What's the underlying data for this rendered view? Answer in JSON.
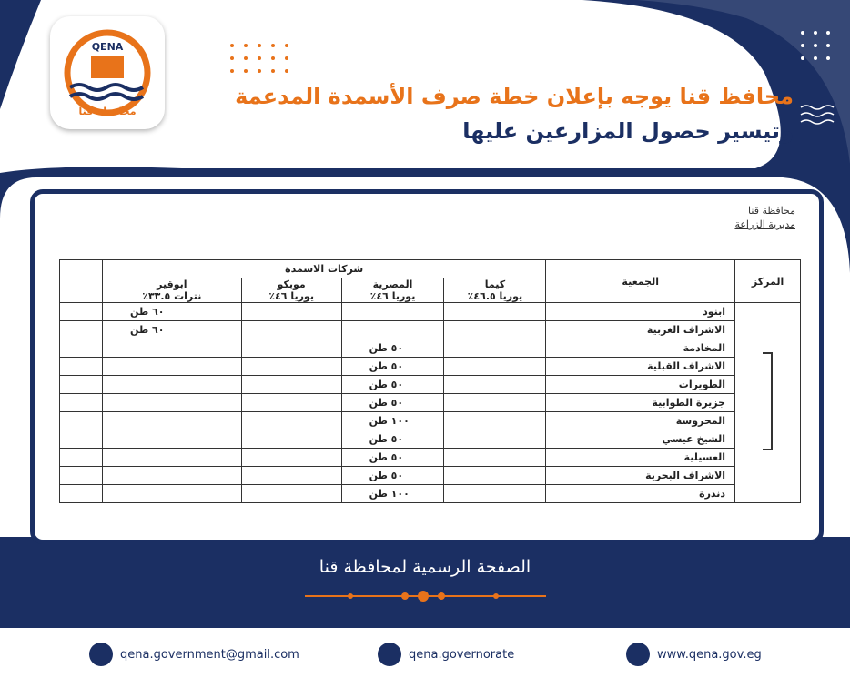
{
  "logo": {
    "abbr": "QENA",
    "name": "محافظة قنا"
  },
  "header": {
    "title_line1": "محافظ قنا يوجه بإعلان خطة صرف الأسمدة المدعمة",
    "title_line2": "وتيسير حصول المزارعين عليها"
  },
  "document": {
    "issuer": [
      "محافظة قنا",
      "مديرية الزراعة"
    ],
    "table": {
      "center": "المركز",
      "association": "الجمعية",
      "group": "شركات الاسمدة",
      "companies": [
        {
          "name": "كيما",
          "product": "يوريا ٤٦.٥٪"
        },
        {
          "name": "المصرية",
          "product": "يوريا ٤٦٪"
        },
        {
          "name": "موبكو",
          "product": "يوريا ٤٦٪"
        },
        {
          "name": "ابوقير",
          "product": "نترات ٣٣.٥٪"
        }
      ],
      "rows": [
        [
          "ابنود",
          null,
          null,
          null,
          "٦٠ طن"
        ],
        [
          "الاشراف الغربية",
          null,
          null,
          null,
          "٦٠ طن"
        ],
        [
          "المخادمة",
          null,
          "٥٠ طن",
          null,
          null
        ],
        [
          "الاشراف القبلية",
          null,
          "٥٠ طن",
          null,
          null
        ],
        [
          "الطويرات",
          null,
          "٥٠ طن",
          null,
          null
        ],
        [
          "جزيرة الطوابية",
          null,
          "٥٠ طن",
          null,
          null
        ],
        [
          "المحروسة",
          null,
          "١٠٠ طن",
          null,
          null
        ],
        [
          "الشيخ عيسي",
          null,
          "٥٠ طن",
          null,
          null
        ],
        [
          "العسيلية",
          null,
          "٥٠ طن",
          null,
          null
        ],
        [
          "الاشراف البحرية",
          null,
          "٥٠ طن",
          null,
          null
        ],
        [
          "دندرة",
          null,
          "١٠٠ طن",
          null,
          null
        ]
      ]
    }
  },
  "footer": {
    "page_name": "الصفحة الرسمية لمحافظة قنا",
    "contacts": [
      "qena.government@gmail.com",
      "qena.governorate",
      "www.qena.gov.eg"
    ]
  }
}
